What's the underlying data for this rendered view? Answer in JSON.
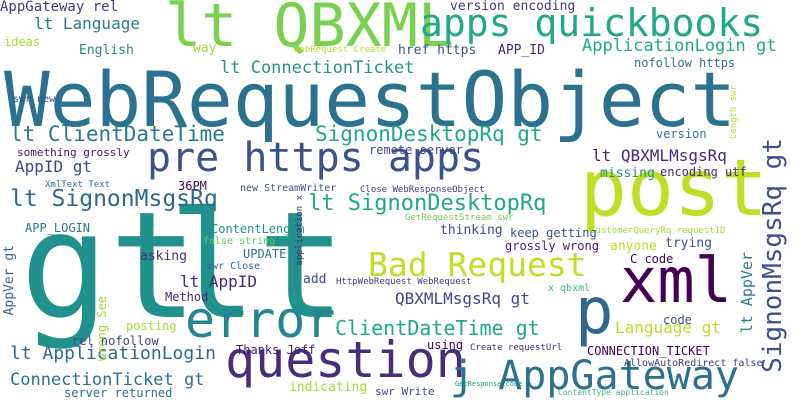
{
  "words": [
    {
      "text": "gt",
      "color": "#21918c"
    },
    {
      "text": "lt",
      "color": "#21918c"
    },
    {
      "text": "WebRequestObject",
      "color": "#2c728e"
    },
    {
      "text": "post",
      "color": "#bddf26"
    },
    {
      "text": "lt QBXML",
      "color": "#7ad151"
    },
    {
      "text": "error",
      "color": "#25858e"
    },
    {
      "text": "xml",
      "color": "#440154"
    },
    {
      "text": "p",
      "color": "#31688e"
    },
    {
      "text": "pre https apps",
      "color": "#3b528b"
    },
    {
      "text": "question",
      "color": "#472d7b"
    },
    {
      "text": "apps quickbooks",
      "color": "#22a884"
    },
    {
      "text": "j AppGateway",
      "color": "#2c728e"
    },
    {
      "text": "Bad Request",
      "color": "#bddf26"
    },
    {
      "text": "SignonMsgsRq gt",
      "color": "#3b528b"
    },
    {
      "text": "lt SignonMsgsRq",
      "color": "#31688e"
    },
    {
      "text": "lt SignonDesktopRq",
      "color": "#22a884"
    },
    {
      "text": "SignonDesktopRq gt",
      "color": "#22a884"
    },
    {
      "text": "lt ClientDateTime",
      "color": "#2a788e"
    },
    {
      "text": "ClientDateTime gt",
      "color": "#22a884"
    },
    {
      "text": "ApplicationLogin gt",
      "color": "#22a884"
    },
    {
      "text": "lt ConnectionTicket",
      "color": "#21918c"
    },
    {
      "text": "lt ApplicationLogin",
      "color": "#31688e"
    },
    {
      "text": "ConnectionTicket gt",
      "color": "#2c728e"
    },
    {
      "text": "lt QBXMLMsgsRq",
      "color": "#482878"
    },
    {
      "text": "QBXMLMsgsRq gt",
      "color": "#3e4989"
    },
    {
      "text": "lt Language",
      "color": "#2a788e"
    },
    {
      "text": "Language gt",
      "color": "#b5de2b"
    },
    {
      "text": "lt AppID",
      "color": "#482878"
    },
    {
      "text": "AppID gt",
      "color": "#3e4989"
    },
    {
      "text": "lt AppVer",
      "color": "#2a788e"
    },
    {
      "text": "AppVer gt",
      "color": "#31688e"
    },
    {
      "text": "AppGateway rel",
      "color": "#443983"
    },
    {
      "text": "version encoding",
      "color": "#443983"
    },
    {
      "text": "ideas",
      "color": "#a2da37"
    },
    {
      "text": "English",
      "color": "#25858e"
    },
    {
      "text": "way",
      "color": "#a5db36"
    },
    {
      "text": "WebRequest Create",
      "color": "#b5de2b"
    },
    {
      "text": "href https",
      "color": "#3b528b"
    },
    {
      "text": "APP_ID",
      "color": "#482878"
    },
    {
      "text": "nofollow https",
      "color": "#2c728e"
    },
    {
      "text": "swr new",
      "color": "#3b528b"
    },
    {
      "text": "version",
      "color": "#2a788e"
    },
    {
      "text": "remote server",
      "color": "#3e4989"
    },
    {
      "text": "something grossly",
      "color": "#471063"
    },
    {
      "text": "missing",
      "color": "#21918c"
    },
    {
      "text": "encoding utf",
      "color": "#482878"
    },
    {
      "text": "XmlText Text",
      "color": "#2c728e"
    },
    {
      "text": "36PM",
      "color": "#440154"
    },
    {
      "text": "new StreamWriter",
      "color": "#3b528b"
    },
    {
      "text": "Close WebResponseObject",
      "color": "#443983"
    },
    {
      "text": "APP_LOGIN",
      "color": "#2a788e"
    },
    {
      "text": "ContentLength",
      "color": "#21918c"
    },
    {
      "text": "thinking",
      "color": "#3e4989"
    },
    {
      "text": "keep getting",
      "color": "#3b528b"
    },
    {
      "text": "GetRequestStream swr",
      "color": "#6ece58"
    },
    {
      "text": "CustomerQueryRq requestID",
      "color": "#a0da39"
    },
    {
      "text": "false string",
      "color": "#5ec962"
    },
    {
      "text": "grossly wrong",
      "color": "#481b6d"
    },
    {
      "text": "anyone",
      "color": "#bddf26"
    },
    {
      "text": "trying",
      "color": "#3b528b"
    },
    {
      "text": "asking",
      "color": "#472d7b"
    },
    {
      "text": "UPDATE",
      "color": "#2c728e"
    },
    {
      "text": "swr Close",
      "color": "#31688e"
    },
    {
      "text": "C code",
      "color": "#440154"
    },
    {
      "text": "add",
      "color": "#3e4989"
    },
    {
      "text": "HttpWebRequest WebRequest",
      "color": "#443983"
    },
    {
      "text": "Method",
      "color": "#482878"
    },
    {
      "text": "x qbxml",
      "color": "#35b779"
    },
    {
      "text": "wrong See",
      "color": "#a2da37"
    },
    {
      "text": "posting",
      "color": "#a0da39"
    },
    {
      "text": "rel nofollow",
      "color": "#3e4989"
    },
    {
      "text": "code",
      "color": "#3b528b"
    },
    {
      "text": "Thanks Jeff",
      "color": "#481b6d"
    },
    {
      "text": "using",
      "color": "#440154"
    },
    {
      "text": "Create requestUrl",
      "color": "#482878"
    },
    {
      "text": "CONNECTION_TICKET",
      "color": "#440154"
    },
    {
      "text": "indicating",
      "color": "#a5db36"
    },
    {
      "text": "AllowAutoRedirect false",
      "color": "#443983"
    },
    {
      "text": "server returned",
      "color": "#2c728e"
    },
    {
      "text": "swr Write",
      "color": "#3e4989"
    },
    {
      "text": "GetResponse code",
      "color": "#21918c"
    },
    {
      "text": "ContentType application",
      "color": "#35b779"
    },
    {
      "text": "application x",
      "color": "#482878"
    },
    {
      "text": "Length swr",
      "color": "#b5de2b"
    }
  ]
}
